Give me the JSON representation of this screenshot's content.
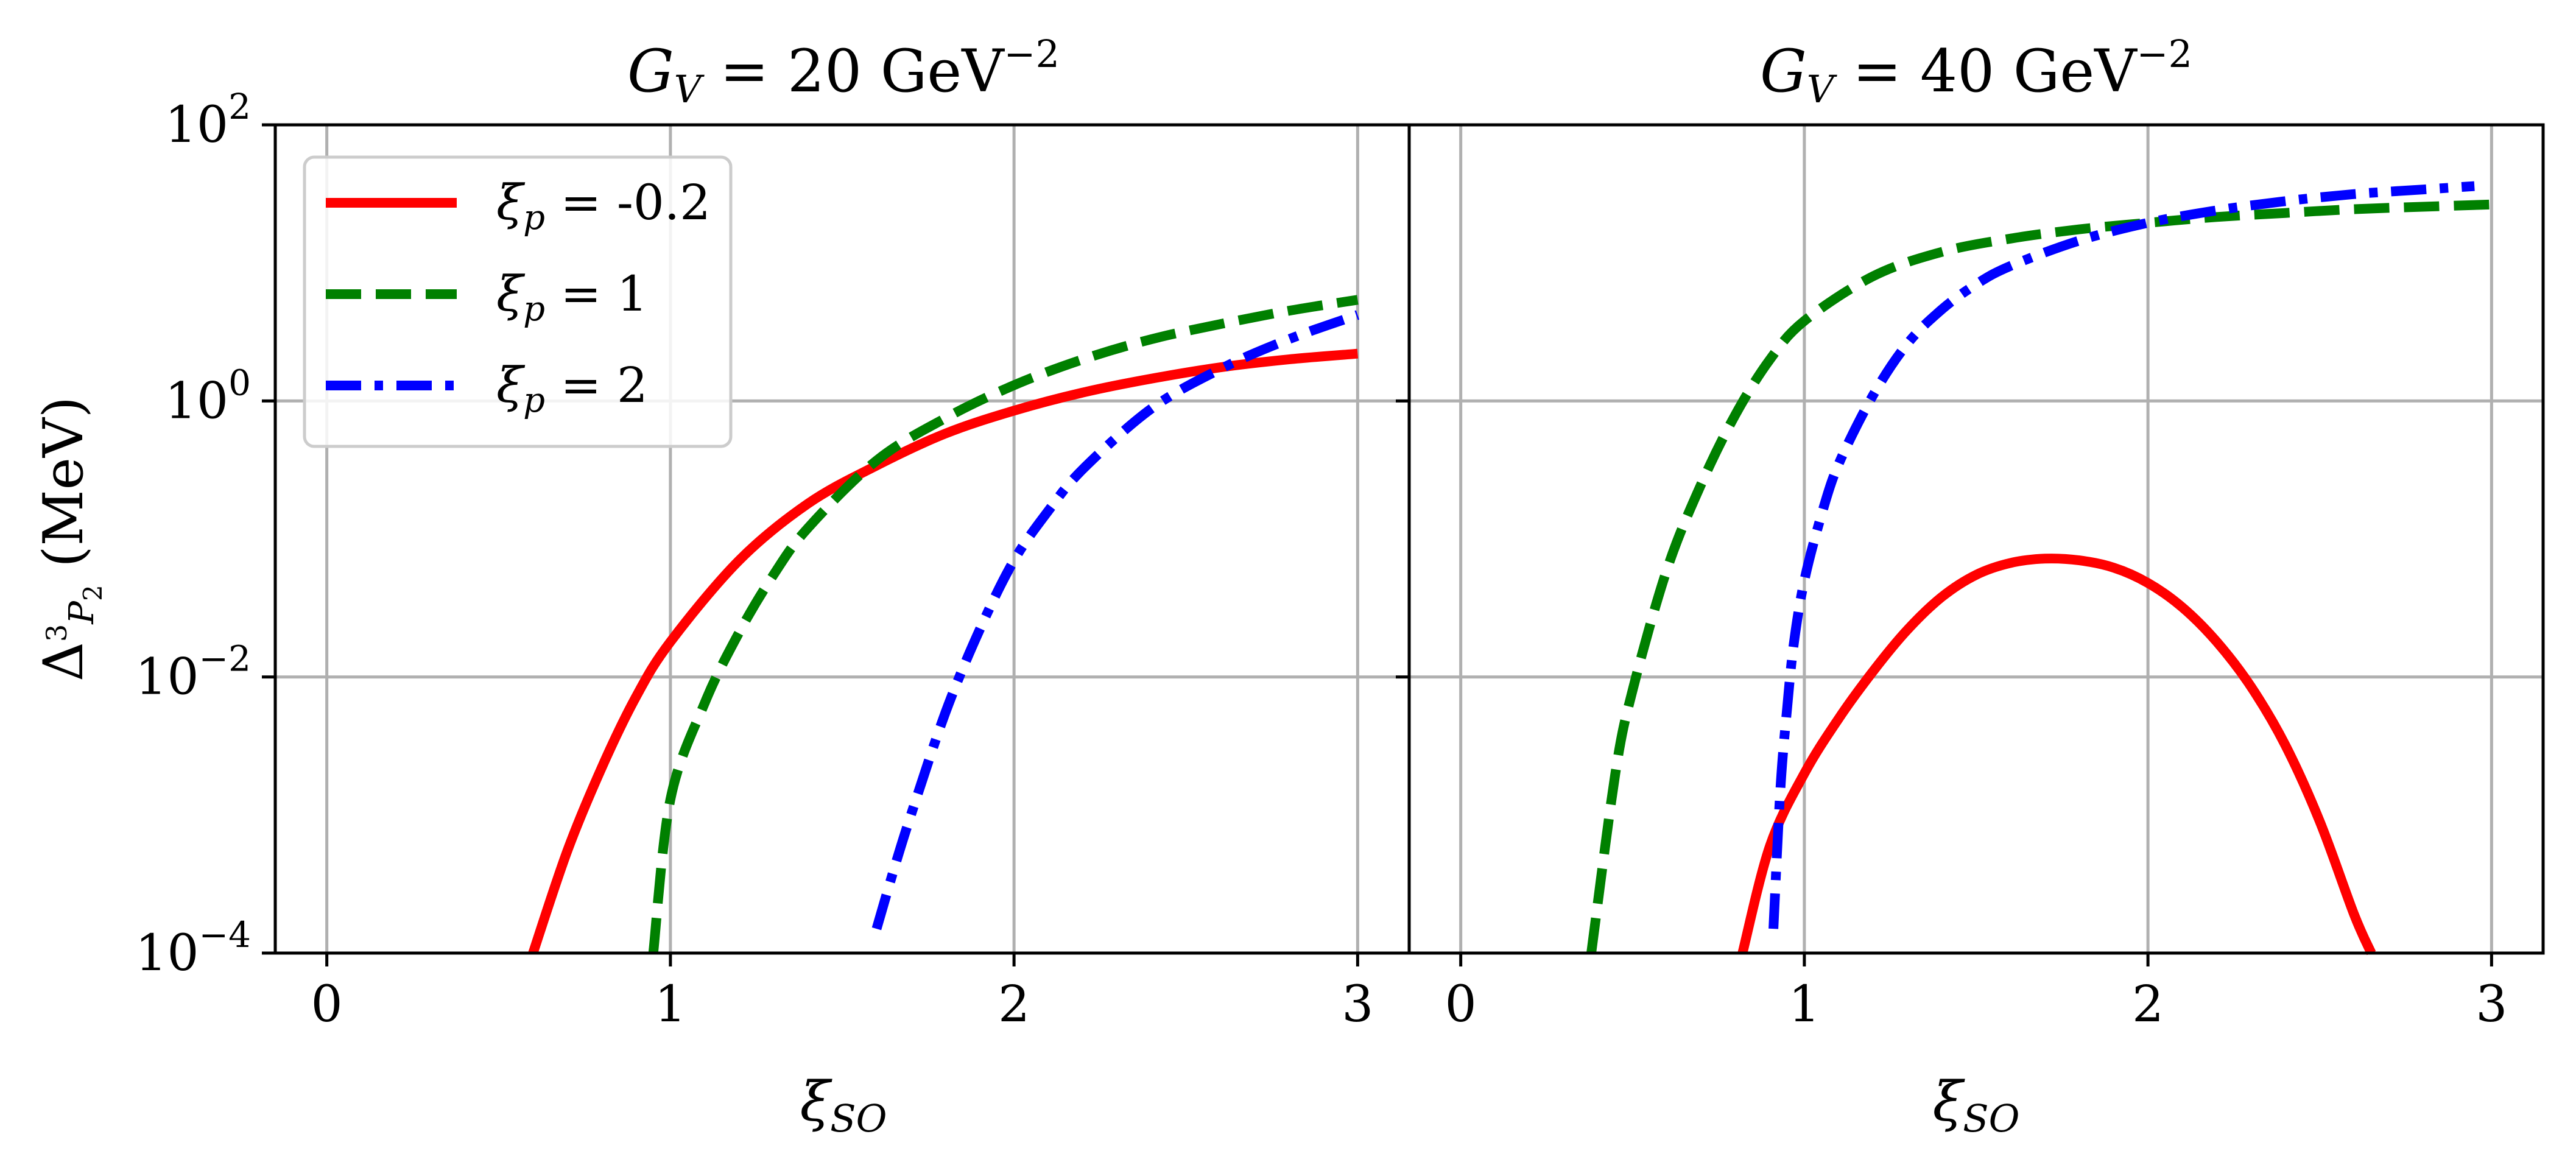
{
  "chart_data": [
    {
      "type": "line",
      "title": "G_V = 20 GeV^-2",
      "title_parts": {
        "sym": "G",
        "sub": "V",
        "eq": " = 20 GeV",
        "sup": "−2"
      },
      "xlabel": "ξ_SO",
      "ylabel": "Δ_{3P2} (MeV)",
      "y_scale": "log",
      "xlim": [
        -0.15,
        3.15
      ],
      "ylim": [
        0.0001,
        100
      ],
      "x_ticks": [
        "0",
        "1",
        "2",
        "3"
      ],
      "y_ticks": [
        {
          "value": 0.0001,
          "base": "10",
          "exp": "−4"
        },
        {
          "value": 0.01,
          "base": "10",
          "exp": "−2"
        },
        {
          "value": 1,
          "base": "10",
          "exp": "0"
        },
        {
          "value": 100,
          "base": "10",
          "exp": "2"
        }
      ],
      "grid": true,
      "legend": "upper-left",
      "series": [
        {
          "name": "ξ_p = -0.2",
          "legend_sym": "ξ",
          "legend_sub": "p",
          "legend_val": " = -0.2",
          "color": "#ff0000",
          "style": "solid",
          "x": [
            0.6,
            0.7,
            0.8,
            0.9,
            1.0,
            1.2,
            1.4,
            1.6,
            1.8,
            2.0,
            2.2,
            2.4,
            2.6,
            2.8,
            3.0
          ],
          "y": [
            0.0001,
            0.00055,
            0.0022,
            0.0072,
            0.018,
            0.07,
            0.18,
            0.34,
            0.58,
            0.85,
            1.15,
            1.45,
            1.75,
            2.0,
            2.2
          ]
        },
        {
          "name": "ξ_p = 1",
          "legend_sym": "ξ",
          "legend_sub": "p",
          "legend_val": " = 1",
          "color": "#008000",
          "style": "dashed",
          "x": [
            0.95,
            1.0,
            1.1,
            1.2,
            1.3,
            1.4,
            1.6,
            1.8,
            2.0,
            2.2,
            2.4,
            2.6,
            2.8,
            3.0
          ],
          "y": [
            0.0001,
            0.0013,
            0.0065,
            0.021,
            0.055,
            0.12,
            0.37,
            0.75,
            1.3,
            2.0,
            2.8,
            3.6,
            4.5,
            5.4
          ]
        },
        {
          "name": "ξ_p = 2",
          "legend_sym": "ξ",
          "legend_sub": "p",
          "legend_val": " = 2",
          "color": "#0000ff",
          "style": "dashdot",
          "x": [
            1.6,
            1.65,
            1.7,
            1.8,
            1.9,
            2.0,
            2.1,
            2.2,
            2.4,
            2.6,
            2.8,
            3.0
          ],
          "y": [
            0.00015,
            0.0004,
            0.001,
            0.0055,
            0.022,
            0.07,
            0.16,
            0.32,
            0.88,
            1.7,
            2.8,
            4.2
          ]
        }
      ]
    },
    {
      "type": "line",
      "title": "G_V = 40 GeV^-2",
      "title_parts": {
        "sym": "G",
        "sub": "V",
        "eq": " = 40 GeV",
        "sup": "−2"
      },
      "xlabel": "ξ_SO",
      "y_scale": "log",
      "xlim": [
        -0.15,
        3.15
      ],
      "ylim": [
        0.0001,
        100
      ],
      "x_ticks": [
        "0",
        "1",
        "2",
        "3"
      ],
      "grid": true,
      "series": [
        {
          "name": "ξ_p = -0.2",
          "color": "#ff0000",
          "style": "solid",
          "x": [
            0.82,
            0.9,
            1.0,
            1.1,
            1.2,
            1.3,
            1.4,
            1.5,
            1.6,
            1.7,
            1.8,
            1.9,
            2.0,
            2.1,
            2.2,
            2.3,
            2.4,
            2.5,
            2.6,
            2.65
          ],
          "y": [
            0.0001,
            0.0006,
            0.002,
            0.005,
            0.011,
            0.022,
            0.038,
            0.055,
            0.067,
            0.072,
            0.07,
            0.062,
            0.048,
            0.032,
            0.018,
            0.0085,
            0.0032,
            0.0009,
            0.00019,
            0.0001
          ]
        },
        {
          "name": "ξ_p = 1",
          "color": "#008000",
          "style": "dashed",
          "x": [
            0.38,
            0.45,
            0.5,
            0.6,
            0.7,
            0.8,
            0.9,
            1.0,
            1.2,
            1.4,
            1.6,
            1.8,
            2.0,
            2.2,
            2.4,
            2.6,
            2.8,
            3.0
          ],
          "y": [
            0.0001,
            0.002,
            0.008,
            0.06,
            0.25,
            0.8,
            2.0,
            3.8,
            8.0,
            12.0,
            15.0,
            17.5,
            19.5,
            21.5,
            23.0,
            24.5,
            25.5,
            26.5
          ]
        },
        {
          "name": "ξ_p = 2",
          "color": "#0000ff",
          "style": "dashdot",
          "x": [
            0.91,
            0.93,
            0.95,
            0.97,
            1.0,
            1.05,
            1.1,
            1.2,
            1.3,
            1.4,
            1.5,
            1.6,
            1.8,
            2.0,
            2.2,
            2.4,
            2.6,
            2.8,
            2.95
          ],
          "y": [
            0.00015,
            0.0015,
            0.006,
            0.018,
            0.05,
            0.15,
            0.35,
            1.1,
            2.6,
            4.6,
            7.0,
            9.5,
            14.5,
            19.5,
            24.0,
            28.0,
            31.5,
            34.0,
            36.0
          ]
        }
      ]
    }
  ]
}
